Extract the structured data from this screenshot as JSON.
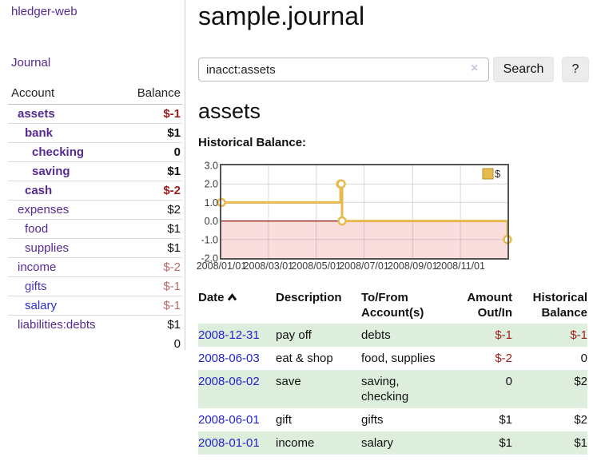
{
  "colors": {
    "brand_purple": "#552a93",
    "link_blue": "#2323cc",
    "negative_strong": "#9e1c1c",
    "negative_soft": "#b96b6b",
    "row_shade_green": "#ddeedd",
    "chart_gold": "#e7ba4d"
  },
  "app": {
    "brand": "hledger-web"
  },
  "sidebar": {
    "nav_journal": "Journal",
    "table": {
      "header_account": "Account",
      "header_balance": "Balance",
      "rows": [
        {
          "name": "assets",
          "depth": 1,
          "bold": true,
          "balance": "$-1",
          "balance_style": "neg-strong"
        },
        {
          "name": "bank",
          "depth": 2,
          "bold": true,
          "balance": "$1",
          "balance_style": "pos"
        },
        {
          "name": "checking",
          "depth": 3,
          "bold": true,
          "balance": "0",
          "balance_style": "pos"
        },
        {
          "name": "saving",
          "depth": 3,
          "bold": true,
          "balance": "$1",
          "balance_style": "pos"
        },
        {
          "name": "cash",
          "depth": 2,
          "bold": true,
          "balance": "$-2",
          "balance_style": "neg-strong"
        },
        {
          "name": "expenses",
          "depth": 1,
          "bold": false,
          "balance": "$2",
          "balance_style": "pos"
        },
        {
          "name": "food",
          "depth": 2,
          "bold": false,
          "balance": "$1",
          "balance_style": "pos"
        },
        {
          "name": "supplies",
          "depth": 2,
          "bold": false,
          "balance": "$1",
          "balance_style": "pos"
        },
        {
          "name": "income",
          "depth": 1,
          "bold": false,
          "balance": "$-2",
          "balance_style": "neg-soft"
        },
        {
          "name": "gifts",
          "depth": 2,
          "bold": false,
          "balance": "$-1",
          "balance_style": "neg-soft",
          "link_style": "blue-purple"
        },
        {
          "name": "salary",
          "depth": 2,
          "bold": false,
          "balance": "$-1",
          "balance_style": "neg-soft",
          "link_style": "blue"
        },
        {
          "name": "liabilities:debts",
          "depth": 1,
          "bold": false,
          "balance": "$1",
          "balance_style": "pos"
        }
      ],
      "total": "0"
    }
  },
  "main": {
    "title": "sample.journal",
    "search": {
      "value": "inacct:assets",
      "clear": "×",
      "search_button": "Search",
      "help_button": "?"
    },
    "account_heading": "assets",
    "chart_title": "Historical Balance:"
  },
  "chart_data": {
    "type": "line",
    "step": true,
    "title": "Historical Balance",
    "xlim": [
      "2008-01-01",
      "2008-12-31"
    ],
    "ylim": [
      -2,
      3
    ],
    "grid": true,
    "legend_position": "top-right",
    "legend_label": "$",
    "series": [
      {
        "name": "$",
        "color": "#e7ba4d",
        "points": [
          [
            "2008-01-01",
            1
          ],
          [
            "2008-06-01",
            2
          ],
          [
            "2008-06-02",
            2
          ],
          [
            "2008-06-03",
            0
          ],
          [
            "2008-12-31",
            -1
          ]
        ]
      }
    ],
    "x_ticks": [
      {
        "label": "2008/01/01",
        "date": "2008-01-01"
      },
      {
        "label": "2008/03/01",
        "date": "2008-03-01"
      },
      {
        "label": "2008/05/01",
        "date": "2008-05-01"
      },
      {
        "label": "2008/07/01",
        "date": "2008-07-01"
      },
      {
        "label": "2008/09/01",
        "date": "2008-09-01"
      },
      {
        "label": "2008/11/01",
        "date": "2008-11-01"
      }
    ],
    "y_ticks": [
      {
        "label": "3.0",
        "value": 3
      },
      {
        "label": "2.0",
        "value": 2
      },
      {
        "label": "1.0",
        "value": 1
      },
      {
        "label": "0.0",
        "value": 0
      },
      {
        "label": "-1.0",
        "value": -1
      },
      {
        "label": "-2.0",
        "value": -2
      }
    ],
    "negative_region_color": "#fadddd",
    "zero_line_color": "#8e0e0e"
  },
  "transactions": {
    "headers": {
      "date": "Date",
      "description": "Description",
      "accounts": "To/From Account(s)",
      "amount": "Amount Out/In",
      "balance": "Historical Balance"
    },
    "sort_icon": "chevron-up",
    "rows": [
      {
        "date": "2008-12-31",
        "description": "pay off",
        "accounts": "debts",
        "amount": "$-1",
        "amount_neg": true,
        "balance": "$-1",
        "balance_neg": true,
        "shaded": true
      },
      {
        "date": "2008-06-03",
        "description": "eat & shop",
        "accounts": "food, supplies",
        "amount": "$-2",
        "amount_neg": true,
        "balance": "0",
        "balance_neg": false,
        "shaded": false
      },
      {
        "date": "2008-06-02",
        "description": "save",
        "accounts": "saving, checking",
        "amount": "0",
        "amount_neg": false,
        "balance": "$2",
        "balance_neg": false,
        "shaded": true
      },
      {
        "date": "2008-06-01",
        "description": "gift",
        "accounts": "gifts",
        "amount": "$1",
        "amount_neg": false,
        "balance": "$2",
        "balance_neg": false,
        "shaded": false
      },
      {
        "date": "2008-01-01",
        "description": "income",
        "accounts": "salary",
        "amount": "$1",
        "amount_neg": false,
        "balance": "$1",
        "balance_neg": false,
        "shaded": true
      }
    ]
  }
}
